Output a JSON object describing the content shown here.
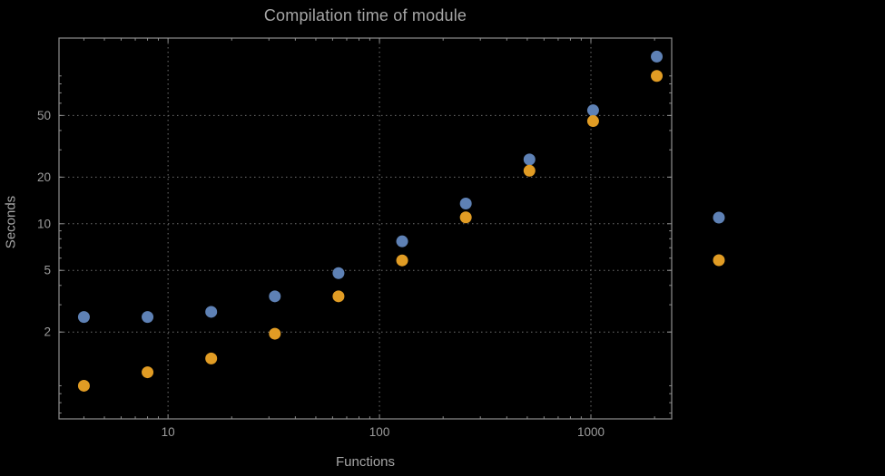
{
  "title": "Compilation time of module",
  "chart_data": {
    "type": "scatter",
    "scale": "log-log",
    "title": "Compilation time of module",
    "xlabel": "Functions",
    "ylabel": "Seconds",
    "x_ticks": [
      10,
      100,
      1000
    ],
    "y_ticks": [
      2,
      5,
      10,
      20,
      50
    ],
    "x_range": [
      3.05,
      2410
    ],
    "y_range": [
      0.55,
      158
    ],
    "grid": "dotted",
    "legend_position": "right-outside",
    "x": [
      4,
      8,
      16,
      32,
      64,
      128,
      256,
      512,
      1024,
      2048
    ],
    "series": [
      {
        "name": "series-blue",
        "color": "#5E81B5",
        "values": [
          2.5,
          2.5,
          2.7,
          3.4,
          4.8,
          7.7,
          13.5,
          26,
          54,
          120
        ]
      },
      {
        "name": "series-orange",
        "color": "#E19C24",
        "values": [
          0.9,
          1.1,
          1.35,
          1.95,
          3.4,
          5.8,
          11,
          22,
          46,
          90
        ]
      }
    ],
    "legend_markers": [
      {
        "name": "series-blue-marker",
        "color": "#5E81B5"
      },
      {
        "name": "series-orange-marker",
        "color": "#E19C24"
      }
    ]
  },
  "colors": {
    "background": "#000000",
    "frame": "#8f8f8f",
    "grid": "#6f6f6f",
    "tick": "#8f8f8f",
    "text": "#a6a6a6",
    "tick_text": "#9c9c9c"
  }
}
